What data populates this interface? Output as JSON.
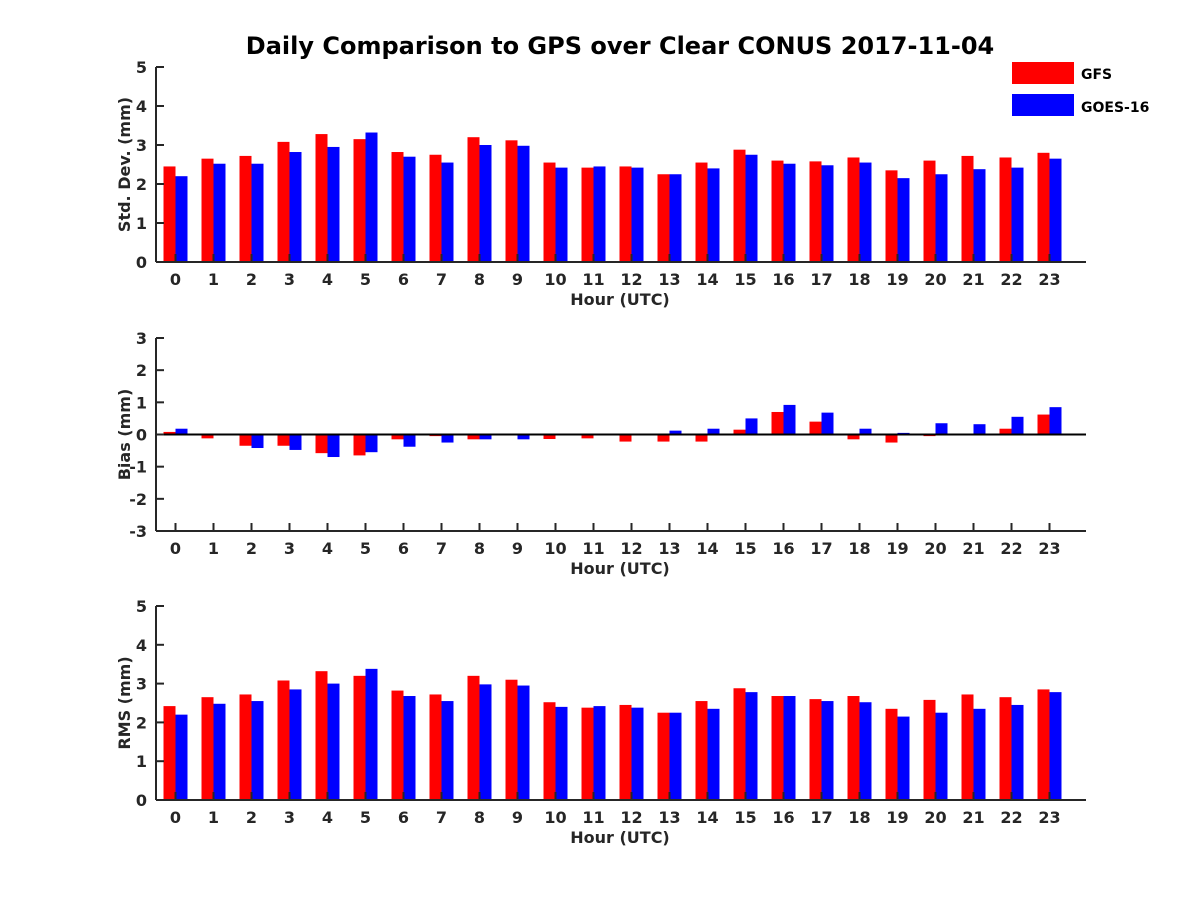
{
  "chart_data": {
    "type": "bar",
    "title": "Daily Comparison to GPS over Clear CONUS 2017-11-04",
    "legend": {
      "placement": "top-right",
      "entries": [
        {
          "name": "GFS",
          "color": "#ff0000"
        },
        {
          "name": "GOES-16",
          "color": "#0000ff"
        }
      ]
    },
    "categories": [
      "0",
      "1",
      "2",
      "3",
      "4",
      "5",
      "6",
      "7",
      "8",
      "9",
      "10",
      "11",
      "12",
      "13",
      "14",
      "15",
      "16",
      "17",
      "18",
      "19",
      "20",
      "21",
      "22",
      "23"
    ],
    "panels": [
      {
        "id": "std",
        "ylabel": "Std. Dev. (mm)",
        "xlabel": "Hour (UTC)",
        "ylim": [
          0,
          5
        ],
        "yticks": [
          "0",
          "1",
          "2",
          "3",
          "4",
          "5"
        ],
        "series": [
          {
            "name": "GFS",
            "values": [
              2.45,
              2.65,
              2.72,
              3.08,
              3.28,
              3.15,
              2.82,
              2.75,
              3.2,
              3.12,
              2.55,
              2.42,
              2.45,
              2.25,
              2.55,
              2.88,
              2.6,
              2.58,
              2.68,
              2.35,
              2.6,
              2.72,
              2.68,
              2.8
            ]
          },
          {
            "name": "GOES-16",
            "values": [
              2.2,
              2.52,
              2.52,
              2.82,
              2.95,
              3.32,
              2.7,
              2.55,
              3.0,
              2.98,
              2.42,
              2.45,
              2.42,
              2.25,
              2.4,
              2.75,
              2.52,
              2.48,
              2.55,
              2.15,
              2.25,
              2.38,
              2.42,
              2.65
            ]
          }
        ]
      },
      {
        "id": "bias",
        "ylabel": "Bias (mm)",
        "xlabel": "Hour (UTC)",
        "ylim": [
          -3,
          3
        ],
        "yticks": [
          "-3",
          "-2",
          "-1",
          "0",
          "1",
          "2",
          "3"
        ],
        "series": [
          {
            "name": "GFS",
            "values": [
              0.08,
              -0.12,
              -0.35,
              -0.35,
              -0.58,
              -0.65,
              -0.15,
              -0.05,
              -0.15,
              -0.03,
              -0.14,
              -0.12,
              -0.22,
              -0.22,
              -0.22,
              0.15,
              0.7,
              0.4,
              -0.15,
              -0.25,
              -0.05,
              0.03,
              0.18,
              0.62
            ]
          },
          {
            "name": "GOES-16",
            "values": [
              0.18,
              0.0,
              -0.42,
              -0.48,
              -0.7,
              -0.55,
              -0.38,
              -0.25,
              -0.15,
              -0.15,
              -0.03,
              0.0,
              -0.03,
              0.12,
              0.18,
              0.5,
              0.92,
              0.68,
              0.18,
              0.05,
              0.35,
              0.32,
              0.55,
              0.85
            ]
          }
        ]
      },
      {
        "id": "rms",
        "ylabel": "RMS (mm)",
        "xlabel": "Hour (UTC)",
        "ylim": [
          0,
          5
        ],
        "yticks": [
          "0",
          "1",
          "2",
          "3",
          "4",
          "5"
        ],
        "series": [
          {
            "name": "GFS",
            "values": [
              2.42,
              2.65,
              2.72,
              3.08,
              3.32,
              3.2,
              2.82,
              2.72,
              3.2,
              3.1,
              2.52,
              2.38,
              2.45,
              2.25,
              2.55,
              2.88,
              2.68,
              2.6,
              2.68,
              2.35,
              2.58,
              2.72,
              2.65,
              2.85
            ]
          },
          {
            "name": "GOES-16",
            "values": [
              2.2,
              2.48,
              2.55,
              2.85,
              3.0,
              3.38,
              2.68,
              2.55,
              2.98,
              2.95,
              2.4,
              2.42,
              2.38,
              2.25,
              2.35,
              2.78,
              2.68,
              2.55,
              2.52,
              2.15,
              2.25,
              2.35,
              2.45,
              2.78
            ]
          }
        ]
      }
    ]
  }
}
